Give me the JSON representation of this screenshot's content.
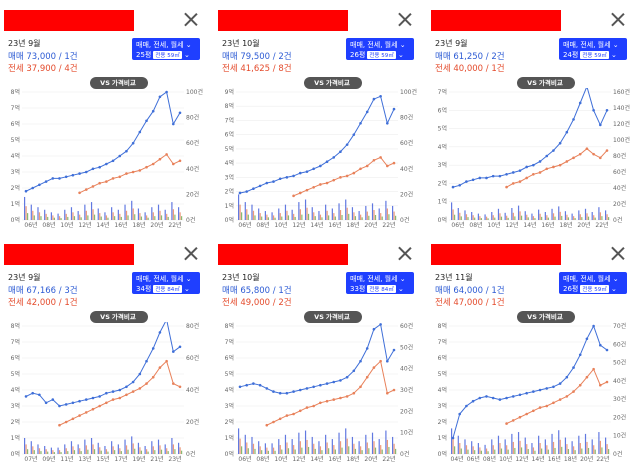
{
  "cards": [
    {
      "date": "23년 9월",
      "sale_label": "매매 73,000 / 1건",
      "jeonse_label": "전세 37,900 / 4건",
      "pill_top": "매매, 전세, 월세",
      "pill_bottom": "25평",
      "area_badge": "전용 59㎡",
      "vs_button": "가격비교",
      "chart_data": {
        "type": "line",
        "x_ticks": [
          "06년",
          "08년",
          "10년",
          "12년",
          "14년",
          "16년",
          "18년",
          "20년",
          "22년"
        ],
        "y_left_ticks": [
          "0억",
          "1억",
          "2억",
          "3억",
          "4억",
          "5억",
          "6억",
          "7억",
          "8억"
        ],
        "y_right_ticks": [
          "0건",
          "20건",
          "40건",
          "60건",
          "80건",
          "100건"
        ],
        "y_left_max": 8,
        "y_right_max": 100,
        "sale": [
          1.8,
          2.0,
          2.2,
          2.4,
          2.6,
          2.6,
          2.7,
          2.8,
          2.9,
          3.0,
          3.2,
          3.3,
          3.5,
          3.7,
          4.0,
          4.3,
          4.8,
          5.5,
          6.2,
          6.8,
          7.7,
          8.0,
          6.0,
          6.7
        ],
        "jeonse": [
          null,
          null,
          null,
          null,
          null,
          null,
          null,
          null,
          1.7,
          1.9,
          2.1,
          2.3,
          2.4,
          2.6,
          2.7,
          2.9,
          3.0,
          3.1,
          3.3,
          3.5,
          3.8,
          4.1,
          3.5,
          3.7
        ],
        "volume": [
          18,
          12,
          10,
          8,
          6,
          5,
          8,
          10,
          7,
          12,
          14,
          9,
          6,
          10,
          8,
          12,
          15,
          9,
          6,
          10,
          12,
          8,
          14,
          10
        ]
      }
    },
    {
      "date": "23년 10월",
      "sale_label": "매매 79,500 / 2건",
      "jeonse_label": "전세 41,625 / 8건",
      "pill_top": "매매, 전세, 월세",
      "pill_bottom": "26평",
      "area_badge": "전용 59㎡",
      "vs_button": "가격비교",
      "chart_data": {
        "type": "line",
        "x_ticks": [
          "06년",
          "08년",
          "10년",
          "12년",
          "14년",
          "16년",
          "18년",
          "20년",
          "22년"
        ],
        "y_left_ticks": [
          "0억",
          "1억",
          "2억",
          "3억",
          "4억",
          "5억",
          "6억",
          "7억",
          "8억",
          "9억"
        ],
        "y_right_ticks": [
          "0건",
          "20건",
          "40건",
          "60건",
          "80건",
          "100건"
        ],
        "y_left_max": 9,
        "y_right_max": 100,
        "sale": [
          1.9,
          2.0,
          2.2,
          2.4,
          2.6,
          2.7,
          2.9,
          3.0,
          3.1,
          3.3,
          3.4,
          3.6,
          3.8,
          4.1,
          4.4,
          4.8,
          5.3,
          6.0,
          6.8,
          7.6,
          8.5,
          8.7,
          6.8,
          7.8
        ],
        "jeonse": [
          null,
          null,
          null,
          null,
          null,
          null,
          null,
          null,
          1.7,
          1.9,
          2.1,
          2.3,
          2.5,
          2.6,
          2.8,
          3.0,
          3.1,
          3.3,
          3.6,
          3.8,
          4.2,
          4.4,
          3.8,
          4.0
        ],
        "volume": [
          20,
          14,
          12,
          9,
          7,
          6,
          9,
          12,
          8,
          14,
          16,
          10,
          7,
          12,
          9,
          13,
          16,
          10,
          7,
          11,
          13,
          9,
          15,
          11
        ]
      }
    },
    {
      "date": "23년 9월",
      "sale_label": "매매 61,250 / 2건",
      "jeonse_label": "전세 40,000 / 1건",
      "pill_top": "매매, 전세, 월세",
      "pill_bottom": "24평",
      "area_badge": "전용 59㎡",
      "vs_button": "가격비교",
      "chart_data": {
        "type": "line",
        "x_ticks": [
          "06년",
          "08년",
          "10년",
          "12년",
          "14년",
          "16년",
          "18년",
          "20년",
          "22년"
        ],
        "y_left_ticks": [
          "0억",
          "1억",
          "2억",
          "3억",
          "4억",
          "5억",
          "6억",
          "7억"
        ],
        "y_right_ticks": [
          "0건",
          "20건",
          "40건",
          "60건",
          "80건",
          "100건",
          "120건",
          "140건",
          "160건"
        ],
        "y_left_max": 7,
        "y_right_max": 160,
        "sale": [
          1.8,
          1.9,
          2.1,
          2.2,
          2.3,
          2.3,
          2.4,
          2.4,
          2.5,
          2.6,
          2.7,
          2.9,
          3.0,
          3.2,
          3.5,
          3.8,
          4.2,
          4.8,
          5.5,
          6.4,
          7.3,
          6.0,
          5.2,
          6.0
        ],
        "jeonse": [
          null,
          null,
          null,
          null,
          null,
          null,
          null,
          null,
          1.8,
          2.0,
          2.1,
          2.3,
          2.5,
          2.6,
          2.8,
          2.9,
          3.0,
          3.2,
          3.4,
          3.6,
          3.9,
          3.6,
          3.4,
          3.8
        ],
        "volume": [
          22,
          15,
          12,
          10,
          8,
          7,
          10,
          14,
          9,
          15,
          18,
          11,
          8,
          13,
          10,
          14,
          17,
          11,
          8,
          12,
          14,
          10,
          16,
          12
        ]
      }
    },
    {
      "date": "23년 9월",
      "sale_label": "매매 67,166 / 3건",
      "jeonse_label": "전세 42,000 / 1건",
      "pill_top": "매매, 전세, 월세",
      "pill_bottom": "34평",
      "area_badge": "전용 84㎡",
      "vs_button": "가격비교",
      "chart_data": {
        "type": "line",
        "x_ticks": [
          "07년",
          "09년",
          "11년",
          "13년",
          "15년",
          "17년",
          "19년",
          "21년",
          "23년"
        ],
        "y_left_ticks": [
          "0억",
          "1억",
          "2억",
          "3억",
          "4억",
          "5억",
          "6억",
          "7억",
          "8억"
        ],
        "y_right_ticks": [
          "0건",
          "20건",
          "40건",
          "60건",
          "80건"
        ],
        "y_left_max": 8,
        "y_right_max": 80,
        "sale": [
          3.6,
          3.8,
          3.7,
          3.2,
          3.4,
          3.0,
          3.1,
          3.2,
          3.3,
          3.4,
          3.5,
          3.6,
          3.8,
          3.9,
          4.0,
          4.2,
          4.5,
          5.0,
          5.8,
          6.6,
          7.6,
          8.4,
          6.4,
          6.7
        ],
        "jeonse": [
          null,
          null,
          null,
          null,
          null,
          1.8,
          2.0,
          2.2,
          2.4,
          2.6,
          2.8,
          3.0,
          3.2,
          3.4,
          3.5,
          3.7,
          3.9,
          4.1,
          4.4,
          4.8,
          5.4,
          5.8,
          4.4,
          4.2
        ],
        "volume": [
          10,
          8,
          6,
          5,
          4,
          4,
          6,
          8,
          6,
          9,
          10,
          7,
          5,
          8,
          6,
          9,
          11,
          7,
          5,
          8,
          9,
          6,
          10,
          7
        ]
      }
    },
    {
      "date": "23년 10월",
      "sale_label": "매매 65,800 / 1건",
      "jeonse_label": "전세 49,000 / 2건",
      "pill_top": "매매, 전세, 월세",
      "pill_bottom": "33평",
      "area_badge": "전용 84㎡",
      "vs_button": "가격비교",
      "chart_data": {
        "type": "line",
        "x_ticks": [
          "06년",
          "08년",
          "10년",
          "12년",
          "14년",
          "16년",
          "18년",
          "20년",
          "22년"
        ],
        "y_left_ticks": [
          "0억",
          "1억",
          "2억",
          "3억",
          "4억",
          "5억",
          "6억",
          "7억",
          "8억"
        ],
        "y_right_ticks": [
          "0건",
          "10건",
          "20건",
          "30건",
          "40건",
          "50건",
          "60건"
        ],
        "y_left_max": 8,
        "y_right_max": 60,
        "sale": [
          4.2,
          4.3,
          4.4,
          4.3,
          4.1,
          3.9,
          3.8,
          3.8,
          3.9,
          4.0,
          4.1,
          4.2,
          4.3,
          4.4,
          4.5,
          4.6,
          4.8,
          5.2,
          5.8,
          6.6,
          7.8,
          8.1,
          5.8,
          6.5
        ],
        "jeonse": [
          null,
          null,
          null,
          null,
          1.8,
          2.0,
          2.2,
          2.4,
          2.5,
          2.7,
          2.9,
          3.0,
          3.2,
          3.3,
          3.4,
          3.5,
          3.6,
          3.8,
          4.2,
          4.8,
          5.4,
          5.8,
          3.8,
          4.0
        ],
        "volume": [
          12,
          9,
          8,
          6,
          5,
          5,
          7,
          9,
          7,
          10,
          11,
          8,
          6,
          9,
          7,
          10,
          12,
          8,
          6,
          9,
          10,
          7,
          11,
          8
        ]
      }
    },
    {
      "date": "23년 11월",
      "sale_label": "매매 64,000 / 1건",
      "jeonse_label": "전세 47,000 / 1건",
      "pill_top": "매매, 전세, 월세",
      "pill_bottom": "26평",
      "area_badge": "전용 59㎡",
      "vs_button": "가격비교",
      "chart_data": {
        "type": "line",
        "x_ticks": [
          "04년",
          "06년",
          "08년",
          "10년",
          "12년",
          "14년",
          "16년",
          "18년",
          "20년",
          "22년"
        ],
        "y_left_ticks": [
          "0억",
          "1억",
          "2억",
          "3억",
          "4억",
          "5억",
          "6억",
          "7억",
          "8억"
        ],
        "y_right_ticks": [
          "0건",
          "10건",
          "20건",
          "30건",
          "40건",
          "50건",
          "60건",
          "70건"
        ],
        "y_left_max": 8,
        "y_right_max": 70,
        "sale": [
          1.0,
          2.5,
          3.0,
          3.3,
          3.5,
          3.6,
          3.5,
          3.4,
          3.5,
          3.6,
          3.7,
          3.8,
          3.9,
          4.0,
          4.1,
          4.2,
          4.4,
          4.8,
          5.4,
          6.2,
          7.2,
          8.0,
          6.8,
          6.5
        ],
        "jeonse": [
          null,
          null,
          null,
          null,
          null,
          null,
          null,
          null,
          1.9,
          2.1,
          2.3,
          2.5,
          2.7,
          2.9,
          3.0,
          3.2,
          3.4,
          3.6,
          3.9,
          4.3,
          4.8,
          5.3,
          4.3,
          4.5
        ],
        "volume": [
          14,
          10,
          8,
          7,
          6,
          5,
          8,
          10,
          8,
          11,
          12,
          9,
          6,
          10,
          8,
          11,
          13,
          9,
          7,
          10,
          11,
          8,
          12,
          9
        ]
      }
    }
  ]
}
